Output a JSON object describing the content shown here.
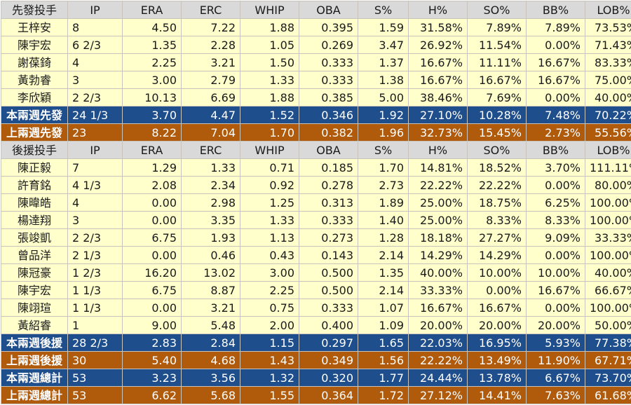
{
  "columns": [
    "IP",
    "ERA",
    "ERC",
    "WHIP",
    "OBA",
    "S%",
    "H%",
    "SO%",
    "BB%",
    "LOB%"
  ],
  "starters": {
    "header_label": "先發投手",
    "rows": [
      {
        "name": "王梓安",
        "vals": [
          "8",
          "4.50",
          "7.22",
          "1.88",
          "0.395",
          "1.59",
          "31.58%",
          "7.89%",
          "7.89%",
          "73.53%"
        ]
      },
      {
        "name": "陳宇宏",
        "vals": [
          "6 2/3",
          "1.35",
          "2.28",
          "1.05",
          "0.269",
          "3.47",
          "26.92%",
          "11.54%",
          "0.00%",
          "71.43%"
        ]
      },
      {
        "name": "謝葆錡",
        "vals": [
          "4",
          "2.25",
          "3.21",
          "1.50",
          "0.333",
          "1.37",
          "16.67%",
          "11.11%",
          "16.67%",
          "83.33%"
        ]
      },
      {
        "name": "黃勃睿",
        "vals": [
          "3",
          "3.00",
          "2.79",
          "1.33",
          "0.333",
          "1.38",
          "16.67%",
          "16.67%",
          "16.67%",
          "75.00%"
        ]
      },
      {
        "name": "李欣穎",
        "vals": [
          "2 2/3",
          "10.13",
          "6.69",
          "1.88",
          "0.385",
          "5.00",
          "38.46%",
          "7.69%",
          "0.00%",
          "40.00%"
        ]
      }
    ],
    "summary": [
      {
        "name": "本兩週先發",
        "vals": [
          "24 1/3",
          "3.70",
          "4.47",
          "1.52",
          "0.346",
          "1.92",
          "27.10%",
          "10.28%",
          "7.48%",
          "70.22%"
        ]
      },
      {
        "name": "上兩週先發",
        "vals": [
          "23",
          "8.22",
          "7.04",
          "1.70",
          "0.382",
          "1.96",
          "32.73%",
          "15.45%",
          "2.73%",
          "55.56%"
        ]
      }
    ]
  },
  "relievers": {
    "header_label": "後援投手",
    "rows": [
      {
        "name": "陳正毅",
        "vals": [
          "7",
          "1.29",
          "1.33",
          "0.71",
          "0.185",
          "1.70",
          "14.81%",
          "18.52%",
          "3.70%",
          "111.11%"
        ]
      },
      {
        "name": "許育銘",
        "vals": [
          "4 1/3",
          "2.08",
          "2.34",
          "0.92",
          "0.278",
          "2.73",
          "22.22%",
          "22.22%",
          "0.00%",
          "80.00%"
        ]
      },
      {
        "name": "陳暐皓",
        "vals": [
          "4",
          "0.00",
          "2.98",
          "1.25",
          "0.313",
          "1.89",
          "25.00%",
          "18.75%",
          "6.25%",
          "100.00%"
        ]
      },
      {
        "name": "楊達翔",
        "vals": [
          "3",
          "0.00",
          "3.35",
          "1.33",
          "0.333",
          "1.40",
          "25.00%",
          "8.33%",
          "8.33%",
          "100.00%"
        ]
      },
      {
        "name": "張竣凱",
        "vals": [
          "2 2/3",
          "6.75",
          "1.93",
          "1.13",
          "0.273",
          "1.28",
          "18.18%",
          "27.27%",
          "9.09%",
          "33.33%"
        ]
      },
      {
        "name": "曾品洋",
        "vals": [
          "2 1/3",
          "0.00",
          "0.46",
          "0.43",
          "0.143",
          "2.14",
          "14.29%",
          "14.29%",
          "0.00%",
          "100.00%"
        ]
      },
      {
        "name": "陳冠豪",
        "vals": [
          "1 2/3",
          "16.20",
          "13.02",
          "3.00",
          "0.500",
          "1.35",
          "40.00%",
          "10.00%",
          "10.00%",
          "40.00%"
        ]
      },
      {
        "name": "陳宇宏",
        "vals": [
          "1 1/3",
          "6.75",
          "8.87",
          "2.25",
          "0.500",
          "2.14",
          "33.33%",
          "0.00%",
          "16.67%",
          "66.67%"
        ]
      },
      {
        "name": "陳翊瑄",
        "vals": [
          "1 1/3",
          "0.00",
          "3.21",
          "0.75",
          "0.333",
          "1.07",
          "16.67%",
          "16.67%",
          "0.00%",
          "100.00%"
        ]
      },
      {
        "name": "黃紹睿",
        "vals": [
          "1",
          "9.00",
          "5.48",
          "2.00",
          "0.400",
          "1.09",
          "20.00%",
          "20.00%",
          "20.00%",
          "50.00%"
        ]
      }
    ],
    "summary": [
      {
        "name": "本兩週後援",
        "vals": [
          "28 2/3",
          "2.83",
          "2.84",
          "1.15",
          "0.297",
          "1.65",
          "22.03%",
          "16.95%",
          "5.93%",
          "77.38%"
        ]
      },
      {
        "name": "上兩週後援",
        "vals": [
          "30",
          "5.40",
          "4.68",
          "1.43",
          "0.349",
          "1.56",
          "22.22%",
          "13.49%",
          "11.90%",
          "67.71%"
        ]
      }
    ]
  },
  "totals": [
    {
      "name": "本兩週總計",
      "vals": [
        "53",
        "3.23",
        "3.56",
        "1.32",
        "0.320",
        "1.77",
        "24.44%",
        "13.78%",
        "6.67%",
        "73.70%"
      ]
    },
    {
      "name": "上兩週總計",
      "vals": [
        "53",
        "6.62",
        "5.68",
        "1.55",
        "0.364",
        "1.72",
        "27.12%",
        "14.41%",
        "7.63%",
        "61.68%"
      ]
    }
  ],
  "colors": {
    "header_bg": "#d9d9d9",
    "row_bg": "#ffffcc",
    "current_bg": "#1f4e8c",
    "previous_bg": "#b05a0c"
  }
}
